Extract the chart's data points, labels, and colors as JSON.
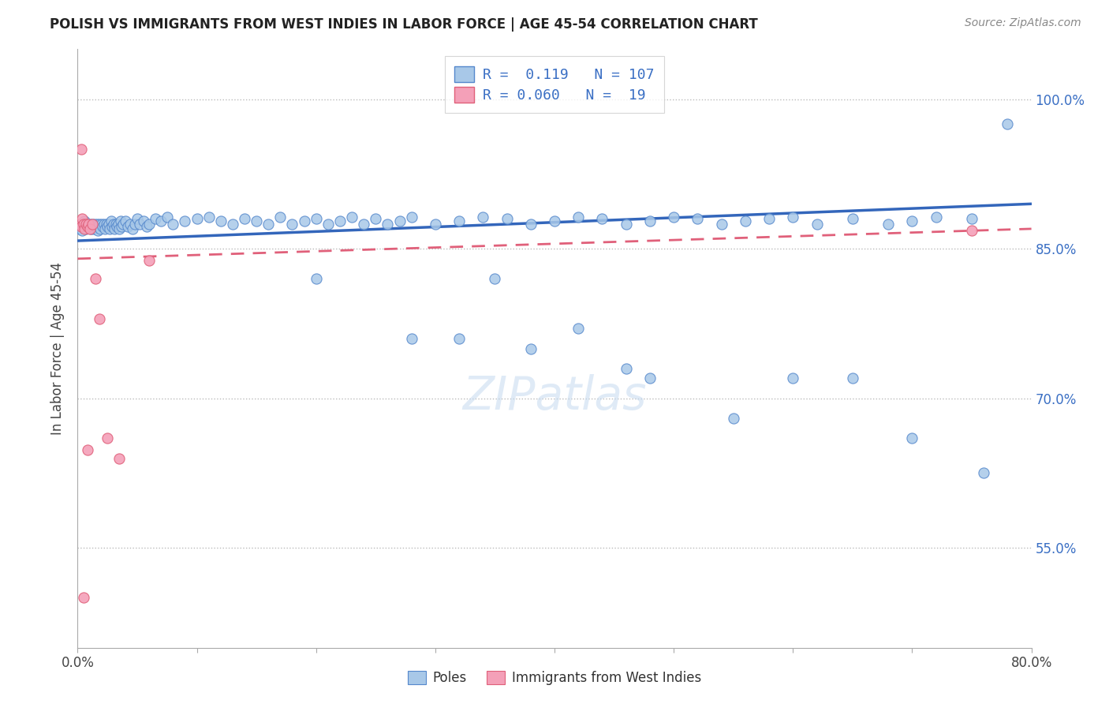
{
  "title": "POLISH VS IMMIGRANTS FROM WEST INDIES IN LABOR FORCE | AGE 45-54 CORRELATION CHART",
  "source": "Source: ZipAtlas.com",
  "ylabel": "In Labor Force | Age 45-54",
  "xmin": 0.0,
  "xmax": 0.8,
  "ymin": 0.45,
  "ymax": 1.05,
  "yticks": [
    0.55,
    0.7,
    0.85,
    1.0
  ],
  "ytick_labels": [
    "55.0%",
    "70.0%",
    "85.0%",
    "100.0%"
  ],
  "poles_R": 0.119,
  "poles_N": 107,
  "west_indies_R": 0.06,
  "west_indies_N": 19,
  "poles_color": "#a8c8e8",
  "poles_edge_color": "#5588cc",
  "poles_line_color": "#3366bb",
  "west_indies_color": "#f4a0b8",
  "west_indies_edge_color": "#e0607a",
  "west_indies_line_color": "#e0607a",
  "poles_x": [
    0.002,
    0.003,
    0.004,
    0.005,
    0.006,
    0.007,
    0.008,
    0.009,
    0.01,
    0.011,
    0.012,
    0.013,
    0.014,
    0.015,
    0.016,
    0.017,
    0.018,
    0.019,
    0.02,
    0.021,
    0.022,
    0.023,
    0.024,
    0.025,
    0.026,
    0.027,
    0.028,
    0.029,
    0.03,
    0.031,
    0.032,
    0.033,
    0.034,
    0.035,
    0.036,
    0.037,
    0.038,
    0.04,
    0.042,
    0.044,
    0.046,
    0.048,
    0.05,
    0.052,
    0.055,
    0.058,
    0.06,
    0.065,
    0.07,
    0.075,
    0.08,
    0.09,
    0.1,
    0.11,
    0.12,
    0.13,
    0.14,
    0.15,
    0.16,
    0.17,
    0.18,
    0.19,
    0.2,
    0.21,
    0.22,
    0.23,
    0.24,
    0.25,
    0.26,
    0.27,
    0.28,
    0.3,
    0.32,
    0.34,
    0.36,
    0.38,
    0.4,
    0.42,
    0.44,
    0.46,
    0.48,
    0.5,
    0.52,
    0.54,
    0.56,
    0.58,
    0.6,
    0.62,
    0.65,
    0.68,
    0.7,
    0.72,
    0.75,
    0.78,
    0.2,
    0.28,
    0.35,
    0.42,
    0.48,
    0.38,
    0.32,
    0.46,
    0.55,
    0.6,
    0.65,
    0.7,
    0.76
  ],
  "poles_y": [
    0.87,
    0.875,
    0.868,
    0.872,
    0.878,
    0.87,
    0.875,
    0.872,
    0.875,
    0.87,
    0.875,
    0.87,
    0.875,
    0.872,
    0.875,
    0.868,
    0.875,
    0.87,
    0.875,
    0.872,
    0.875,
    0.87,
    0.875,
    0.872,
    0.875,
    0.87,
    0.878,
    0.872,
    0.875,
    0.87,
    0.875,
    0.872,
    0.875,
    0.87,
    0.878,
    0.872,
    0.875,
    0.878,
    0.872,
    0.875,
    0.87,
    0.875,
    0.88,
    0.875,
    0.878,
    0.872,
    0.875,
    0.88,
    0.878,
    0.882,
    0.875,
    0.878,
    0.88,
    0.882,
    0.878,
    0.875,
    0.88,
    0.878,
    0.875,
    0.882,
    0.875,
    0.878,
    0.88,
    0.875,
    0.878,
    0.882,
    0.875,
    0.88,
    0.875,
    0.878,
    0.882,
    0.875,
    0.878,
    0.882,
    0.88,
    0.875,
    0.878,
    0.882,
    0.88,
    0.875,
    0.878,
    0.882,
    0.88,
    0.875,
    0.878,
    0.88,
    0.882,
    0.875,
    0.88,
    0.875,
    0.878,
    0.882,
    0.88,
    0.975,
    0.82,
    0.76,
    0.82,
    0.77,
    0.72,
    0.75,
    0.76,
    0.73,
    0.68,
    0.72,
    0.72,
    0.66,
    0.625
  ],
  "wi_x": [
    0.002,
    0.003,
    0.004,
    0.005,
    0.006,
    0.007,
    0.008,
    0.009,
    0.01,
    0.012,
    0.015,
    0.018,
    0.025,
    0.035,
    0.06,
    0.003,
    0.008,
    0.005,
    0.75
  ],
  "wi_y": [
    0.875,
    0.872,
    0.88,
    0.875,
    0.87,
    0.875,
    0.872,
    0.875,
    0.87,
    0.875,
    0.82,
    0.78,
    0.66,
    0.64,
    0.838,
    0.95,
    0.648,
    0.5,
    0.868
  ],
  "trendline_poles_x0": 0.0,
  "trendline_poles_y0": 0.858,
  "trendline_poles_x1": 0.8,
  "trendline_poles_y1": 0.895,
  "trendline_wi_x0": 0.0,
  "trendline_wi_y0": 0.84,
  "trendline_wi_x1": 0.8,
  "trendline_wi_y1": 0.87
}
